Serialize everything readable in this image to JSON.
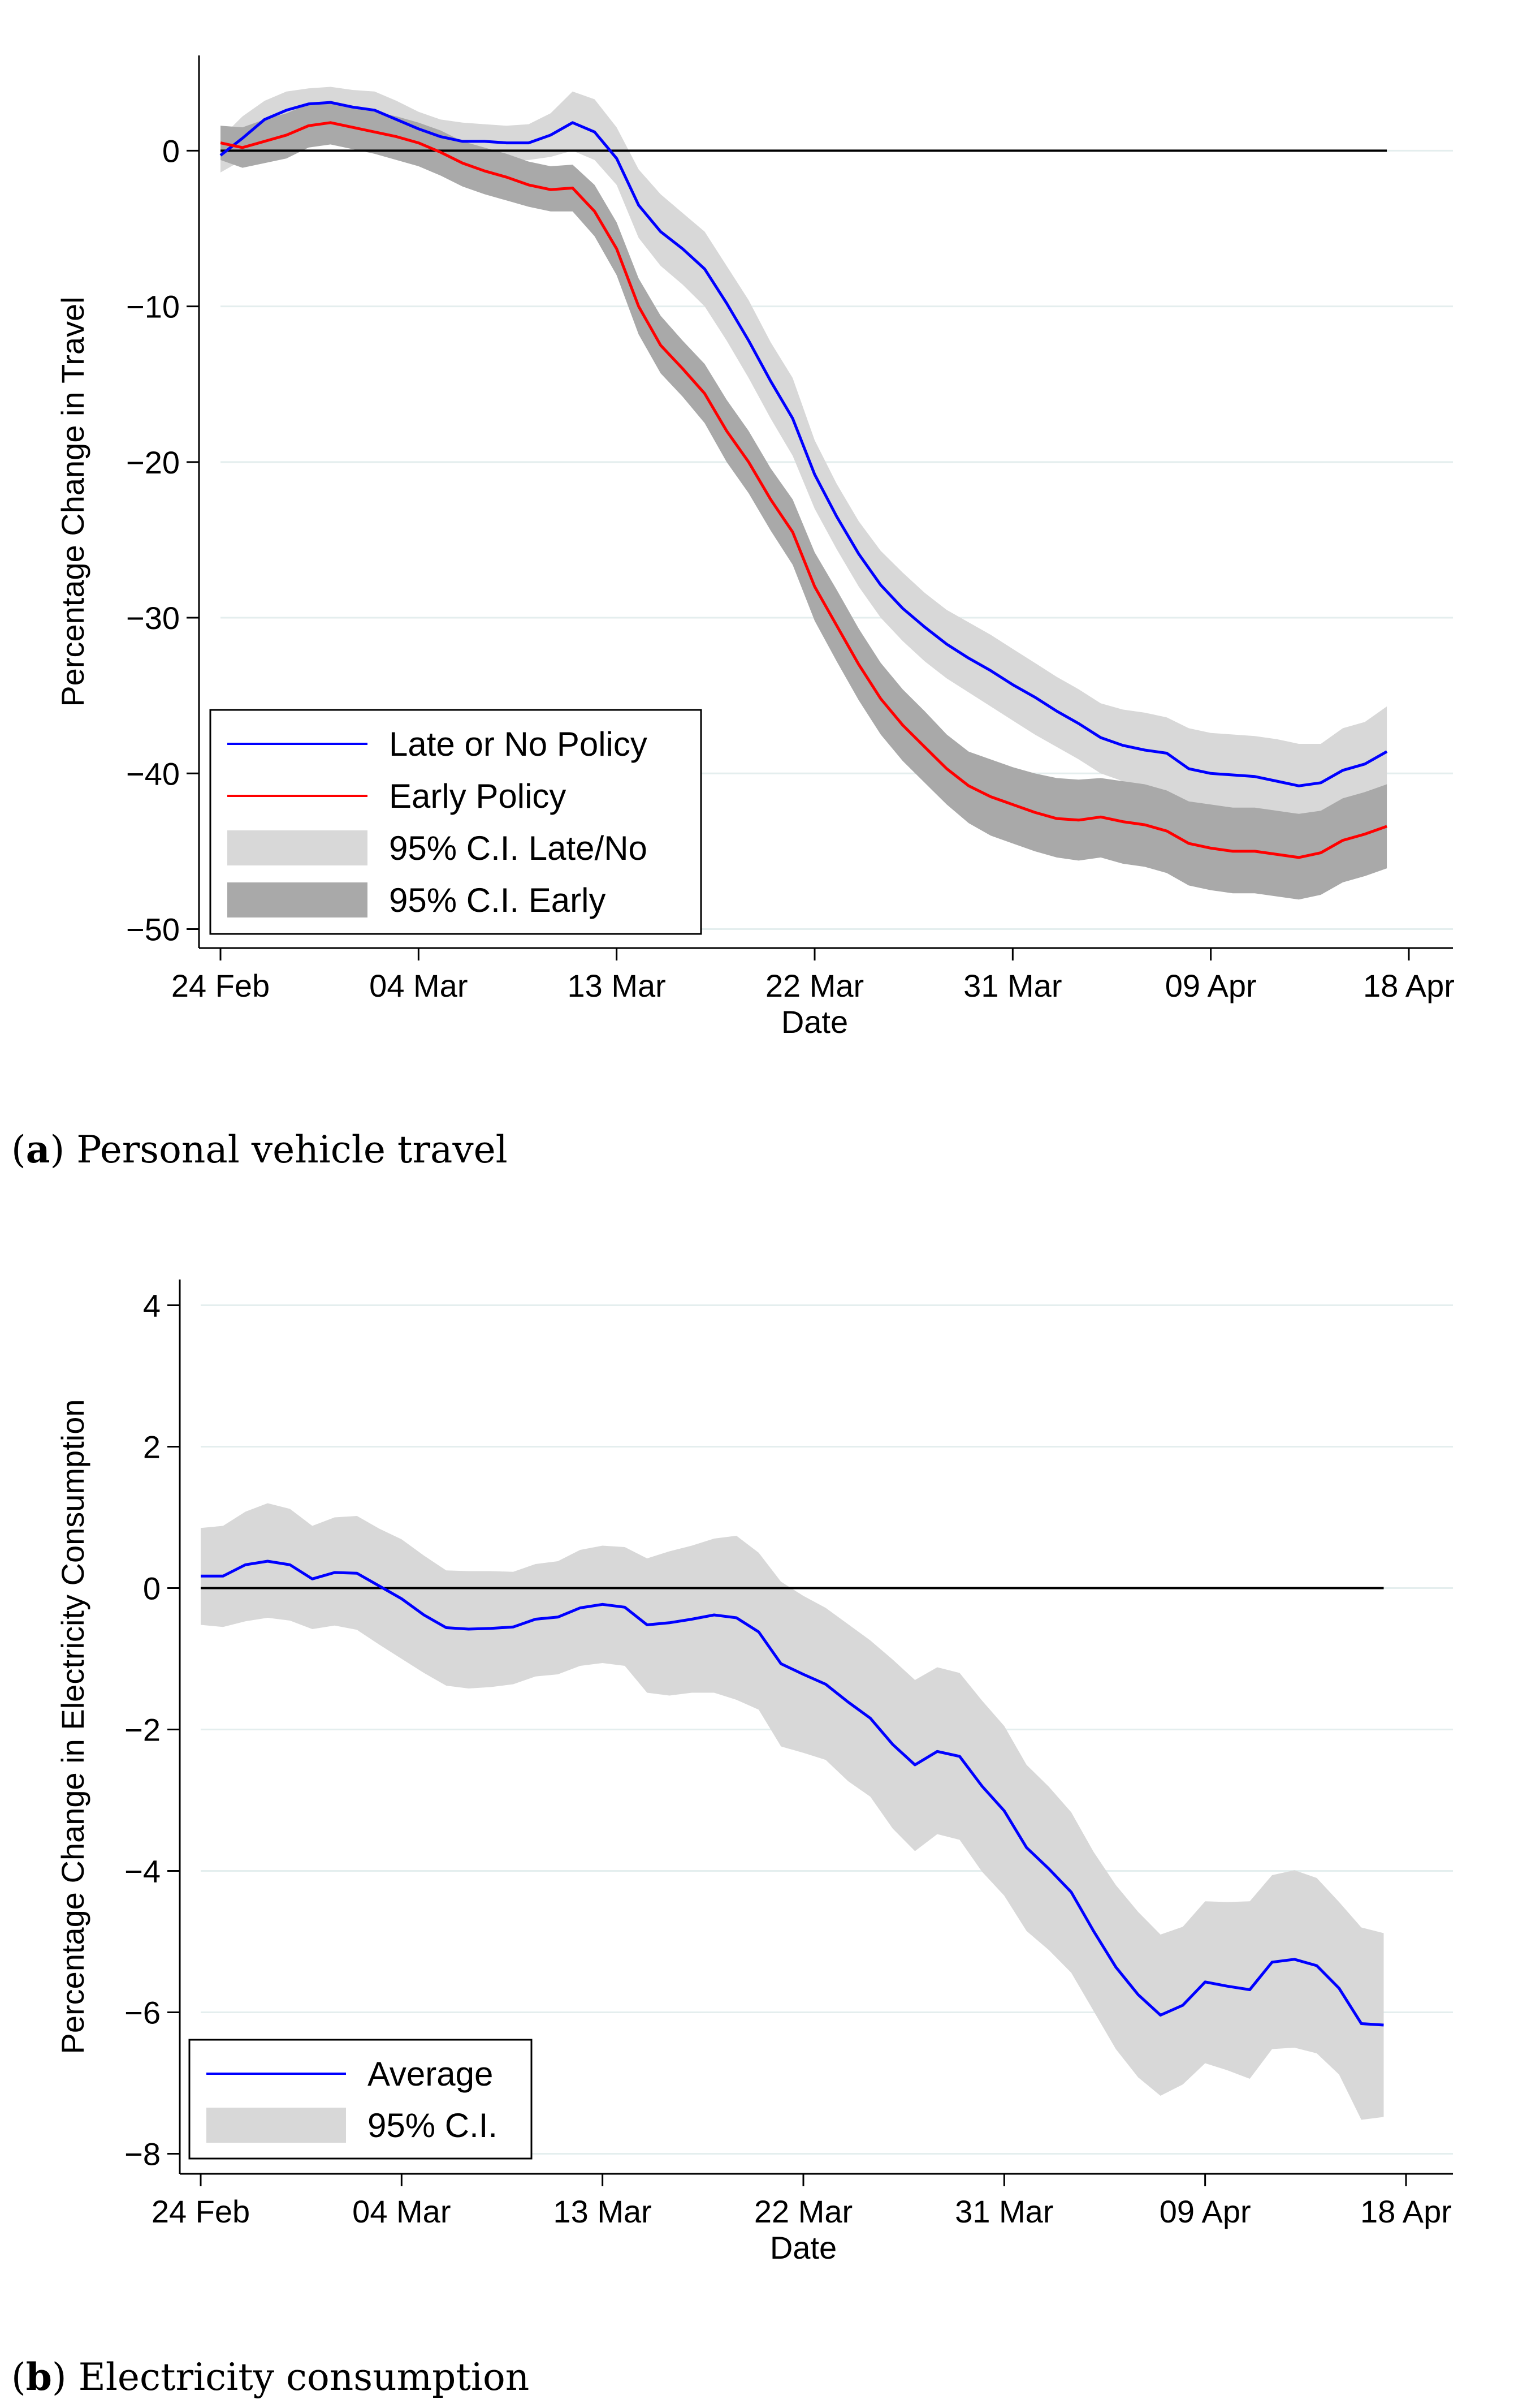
{
  "colors": {
    "late": "#0000ff",
    "early": "#ff0000",
    "ci_light": "#d8d8d8",
    "ci_dark": "#a9a9a9",
    "grid": "#e4eeee",
    "zero": "#000000"
  },
  "chart_data": [
    {
      "type": "line",
      "panel": "a",
      "caption_label": "a",
      "caption_text": "Personal vehicle travel",
      "xlabel": "Date",
      "ylabel": "Percentage Change in Travel",
      "xlim": [
        0,
        54
      ],
      "ylim": [
        -51,
        5.5
      ],
      "xticks": [
        {
          "pos": 0,
          "label": "24 Feb"
        },
        {
          "pos": 9,
          "label": "04 Mar"
        },
        {
          "pos": 18,
          "label": "13 Mar"
        },
        {
          "pos": 27,
          "label": "22 Mar"
        },
        {
          "pos": 36,
          "label": "31 Mar"
        },
        {
          "pos": 45,
          "label": "09 Apr"
        },
        {
          "pos": 54,
          "label": "18 Apr"
        }
      ],
      "yticks": [
        0,
        -10,
        -20,
        -30,
        -40,
        -50
      ],
      "ytick_labels": [
        "0",
        "−10",
        "−20",
        "−30",
        "−40",
        "−50"
      ],
      "reference_line": 0,
      "legend_position": "bottom-left",
      "x": [
        0,
        1,
        2,
        3,
        4,
        5,
        6,
        7,
        8,
        9,
        10,
        11,
        12,
        13,
        14,
        15,
        16,
        17,
        18,
        19,
        20,
        21,
        22,
        23,
        24,
        25,
        26,
        27,
        28,
        29,
        30,
        31,
        32,
        33,
        34,
        35,
        36,
        37,
        38,
        39,
        40,
        41,
        42,
        43,
        44,
        45,
        46,
        47,
        48,
        49,
        50,
        51,
        52,
        53
      ],
      "series": [
        {
          "name": "Late or No Policy",
          "values": [
            -0.3,
            0.8,
            2.0,
            2.6,
            3.0,
            3.1,
            2.8,
            2.6,
            2.0,
            1.4,
            0.9,
            0.6,
            0.6,
            0.5,
            0.5,
            1.0,
            1.8,
            1.2,
            -0.5,
            -3.5,
            -5.2,
            -6.3,
            -7.6,
            -9.8,
            -12.2,
            -14.8,
            -17.2,
            -20.8,
            -23.5,
            -25.9,
            -27.9,
            -29.4,
            -30.6,
            -31.7,
            -32.6,
            -33.4,
            -34.3,
            -35.1,
            -36.0,
            -36.8,
            -37.7,
            -38.2,
            -38.5,
            -38.7,
            -39.7,
            -40.0,
            -40.1,
            -40.2,
            -40.5,
            -40.8,
            -40.6,
            -39.8,
            -39.4,
            -38.6
          ],
          "ci_low": [
            -1.4,
            -0.6,
            0.8,
            1.4,
            1.9,
            2.0,
            1.7,
            1.4,
            0.9,
            0.3,
            -0.2,
            -0.5,
            -0.5,
            -0.6,
            -0.6,
            -0.4,
            0.0,
            -0.6,
            -2.2,
            -5.6,
            -7.4,
            -8.6,
            -10.0,
            -12.2,
            -14.6,
            -17.2,
            -19.6,
            -23.0,
            -25.6,
            -28.0,
            -30.0,
            -31.5,
            -32.8,
            -33.9,
            -34.8,
            -35.7,
            -36.6,
            -37.5,
            -38.3,
            -39.1,
            -40.0,
            -40.5,
            -40.9,
            -41.2,
            -42.2,
            -42.6,
            -42.7,
            -42.8,
            -43.1,
            -43.4,
            -43.2,
            -42.5,
            -42.0,
            -41.4
          ],
          "ci_high": [
            0.8,
            2.2,
            3.2,
            3.8,
            4.0,
            4.1,
            3.9,
            3.8,
            3.2,
            2.5,
            2.0,
            1.8,
            1.7,
            1.6,
            1.7,
            2.4,
            3.8,
            3.3,
            1.5,
            -1.2,
            -2.8,
            -4.0,
            -5.2,
            -7.4,
            -9.6,
            -12.3,
            -14.6,
            -18.6,
            -21.4,
            -23.8,
            -25.7,
            -27.1,
            -28.4,
            -29.5,
            -30.3,
            -31.1,
            -32.0,
            -32.9,
            -33.8,
            -34.6,
            -35.5,
            -35.9,
            -36.1,
            -36.4,
            -37.1,
            -37.4,
            -37.5,
            -37.6,
            -37.8,
            -38.1,
            -38.1,
            -37.1,
            -36.7,
            -35.7
          ]
        },
        {
          "name": "Early Policy",
          "values": [
            0.5,
            0.2,
            0.6,
            1.0,
            1.6,
            1.8,
            1.5,
            1.2,
            0.9,
            0.5,
            -0.1,
            -0.8,
            -1.3,
            -1.7,
            -2.2,
            -2.5,
            -2.4,
            -3.9,
            -6.3,
            -10.0,
            -12.5,
            -14.0,
            -15.6,
            -18.0,
            -20.0,
            -22.4,
            -24.5,
            -28.0,
            -30.5,
            -33.0,
            -35.2,
            -36.9,
            -38.3,
            -39.7,
            -40.8,
            -41.5,
            -42.0,
            -42.5,
            -42.9,
            -43.0,
            -42.8,
            -43.1,
            -43.3,
            -43.7,
            -44.5,
            -44.8,
            -45.0,
            -45.0,
            -45.2,
            -45.4,
            -45.1,
            -44.3,
            -43.9,
            -43.4
          ],
          "ci_low": [
            -0.6,
            -1.1,
            -0.8,
            -0.5,
            0.2,
            0.4,
            0.1,
            -0.2,
            -0.6,
            -1.0,
            -1.6,
            -2.3,
            -2.8,
            -3.2,
            -3.6,
            -3.9,
            -3.9,
            -5.5,
            -8.0,
            -11.8,
            -14.3,
            -15.8,
            -17.5,
            -20.0,
            -22.0,
            -24.4,
            -26.6,
            -30.2,
            -32.8,
            -35.3,
            -37.5,
            -39.2,
            -40.6,
            -42.0,
            -43.2,
            -44.0,
            -44.5,
            -45.0,
            -45.4,
            -45.6,
            -45.4,
            -45.8,
            -46.0,
            -46.4,
            -47.2,
            -47.5,
            -47.7,
            -47.7,
            -47.9,
            -48.1,
            -47.8,
            -47.0,
            -46.6,
            -46.1
          ],
          "ci_high": [
            1.6,
            1.5,
            2.0,
            2.4,
            3.0,
            3.2,
            2.9,
            2.5,
            2.2,
            1.8,
            1.3,
            0.6,
            0.2,
            -0.2,
            -0.7,
            -1.0,
            -0.9,
            -2.2,
            -4.6,
            -8.2,
            -10.6,
            -12.2,
            -13.7,
            -16.0,
            -18.0,
            -20.4,
            -22.4,
            -25.8,
            -28.2,
            -30.7,
            -32.9,
            -34.6,
            -36.0,
            -37.5,
            -38.6,
            -39.1,
            -39.6,
            -40.0,
            -40.3,
            -40.4,
            -40.3,
            -40.5,
            -40.7,
            -41.1,
            -41.8,
            -42.0,
            -42.2,
            -42.2,
            -42.4,
            -42.6,
            -42.4,
            -41.6,
            -41.2,
            -40.7
          ]
        }
      ],
      "legend": [
        {
          "label": "Late or No Policy",
          "kind": "line",
          "color_key": "late"
        },
        {
          "label": "Early Policy",
          "kind": "line",
          "color_key": "early"
        },
        {
          "label": "95% C.I. Late/No",
          "kind": "band",
          "color_key": "ci_light"
        },
        {
          "label": "95% C.I. Early",
          "kind": "band",
          "color_key": "ci_dark"
        }
      ]
    },
    {
      "type": "line",
      "panel": "b",
      "caption_label": "b",
      "caption_text": "Electricity consumption",
      "xlabel": "Date",
      "ylabel": "Percentage Change in Electricity Consumption",
      "xlim": [
        0,
        54
      ],
      "ylim": [
        -8.3,
        4.5
      ],
      "xticks": [
        {
          "pos": 0,
          "label": "24 Feb"
        },
        {
          "pos": 9,
          "label": "04 Mar"
        },
        {
          "pos": 18,
          "label": "13 Mar"
        },
        {
          "pos": 27,
          "label": "22 Mar"
        },
        {
          "pos": 36,
          "label": "31 Mar"
        },
        {
          "pos": 45,
          "label": "09 Apr"
        },
        {
          "pos": 54,
          "label": "18 Apr"
        }
      ],
      "yticks": [
        4,
        2,
        0,
        -2,
        -4,
        -6,
        -8
      ],
      "ytick_labels": [
        "4",
        "2",
        "0",
        "−2",
        "−4",
        "−6",
        "−8"
      ],
      "reference_line": 0,
      "legend_position": "bottom-left",
      "x": [
        0,
        1,
        2,
        3,
        4,
        5,
        6,
        7,
        8,
        9,
        10,
        11,
        12,
        13,
        14,
        15,
        16,
        17,
        18,
        19,
        20,
        21,
        22,
        23,
        24,
        25,
        26,
        27,
        28,
        29,
        30,
        31,
        32,
        33,
        34,
        35,
        36,
        37,
        38,
        39,
        40,
        41,
        42,
        43,
        44,
        45,
        46,
        47,
        48,
        49,
        50,
        51,
        52,
        53
      ],
      "series": [
        {
          "name": "Average",
          "values": [
            0.17,
            0.17,
            0.33,
            0.38,
            0.33,
            0.13,
            0.22,
            0.21,
            0.03,
            -0.15,
            -0.38,
            -0.56,
            -0.58,
            -0.57,
            -0.55,
            -0.44,
            -0.41,
            -0.28,
            -0.23,
            -0.27,
            -0.52,
            -0.49,
            -0.44,
            -0.38,
            -0.42,
            -0.62,
            -1.07,
            -1.22,
            -1.36,
            -1.61,
            -1.84,
            -2.21,
            -2.5,
            -2.31,
            -2.38,
            -2.8,
            -3.15,
            -3.67,
            -3.97,
            -4.3,
            -4.85,
            -5.36,
            -5.75,
            -6.04,
            -5.9,
            -5.57,
            -5.63,
            -5.68,
            -5.29,
            -5.25,
            -5.34,
            -5.66,
            -6.16,
            -6.18
          ],
          "ci_low": [
            -0.52,
            -0.55,
            -0.47,
            -0.42,
            -0.46,
            -0.58,
            -0.53,
            -0.59,
            -0.8,
            -1.0,
            -1.2,
            -1.38,
            -1.42,
            -1.4,
            -1.36,
            -1.25,
            -1.22,
            -1.1,
            -1.06,
            -1.1,
            -1.48,
            -1.52,
            -1.48,
            -1.48,
            -1.58,
            -1.72,
            -2.24,
            -2.33,
            -2.43,
            -2.73,
            -2.95,
            -3.4,
            -3.72,
            -3.48,
            -3.56,
            -4.01,
            -4.35,
            -4.85,
            -5.12,
            -5.44,
            -5.98,
            -6.52,
            -6.92,
            -7.18,
            -7.02,
            -6.72,
            -6.82,
            -6.94,
            -6.52,
            -6.5,
            -6.58,
            -6.88,
            -7.52,
            -7.48
          ],
          "ci_high": [
            0.85,
            0.88,
            1.08,
            1.2,
            1.12,
            0.88,
            1.0,
            1.02,
            0.84,
            0.69,
            0.46,
            0.25,
            0.24,
            0.24,
            0.23,
            0.34,
            0.38,
            0.54,
            0.6,
            0.58,
            0.42,
            0.52,
            0.6,
            0.7,
            0.74,
            0.5,
            0.09,
            -0.11,
            -0.28,
            -0.51,
            -0.74,
            -1.01,
            -1.3,
            -1.12,
            -1.2,
            -1.59,
            -1.95,
            -2.5,
            -2.81,
            -3.17,
            -3.73,
            -4.2,
            -4.58,
            -4.9,
            -4.79,
            -4.43,
            -4.44,
            -4.43,
            -4.06,
            -3.99,
            -4.1,
            -4.44,
            -4.8,
            -4.88
          ]
        }
      ],
      "legend": [
        {
          "label": "Average",
          "kind": "line",
          "color_key": "late"
        },
        {
          "label": "95% C.I.",
          "kind": "band",
          "color_key": "ci_light"
        }
      ]
    }
  ]
}
